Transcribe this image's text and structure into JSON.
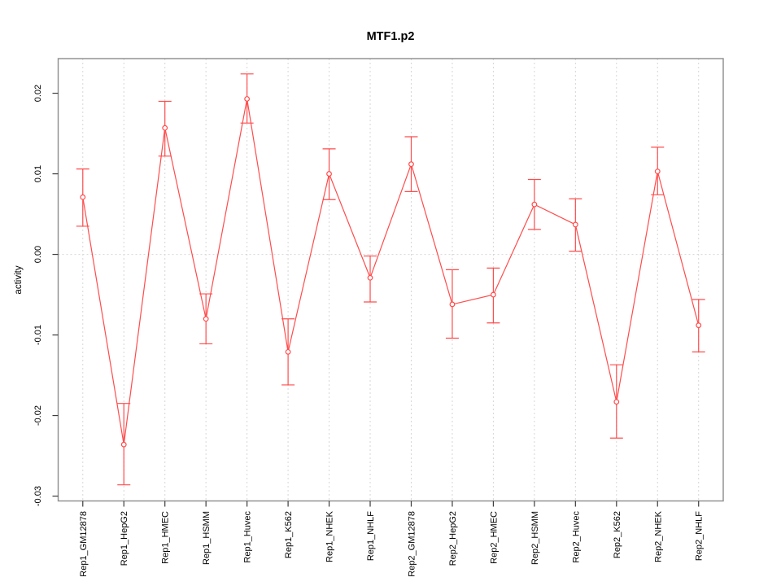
{
  "chart_data": {
    "type": "line",
    "title": "MTF1.p2",
    "xlabel": "",
    "ylabel": "activity",
    "categories": [
      "Rep1_GM12878",
      "Rep1_HepG2",
      "Rep1_HMEC",
      "Rep1_HSMM",
      "Rep1_Huvec",
      "Rep1_K562",
      "Rep1_NHEK",
      "Rep1_NHLF",
      "Rep2_GM12878",
      "Rep2_HepG2",
      "Rep2_HMEC",
      "Rep2_HSMM",
      "Rep2_Huvec",
      "Rep2_K562",
      "Rep2_NHEK",
      "Rep2_NHLF"
    ],
    "series": [
      {
        "name": "activity",
        "values": [
          0.0071,
          -0.0236,
          0.0157,
          -0.008,
          0.0193,
          -0.0121,
          0.01,
          -0.0029,
          0.0112,
          -0.0062,
          -0.005,
          0.0062,
          0.0037,
          -0.0183,
          0.0103,
          -0.0088
        ],
        "err_high": [
          0.0106,
          -0.0185,
          0.019,
          -0.0049,
          0.0224,
          -0.008,
          0.0131,
          -0.0002,
          0.0146,
          -0.0019,
          -0.0017,
          0.0093,
          0.0069,
          -0.0137,
          0.0133,
          -0.0056
        ],
        "err_low": [
          0.0035,
          -0.0286,
          0.0122,
          -0.0111,
          0.0163,
          -0.0162,
          0.0068,
          -0.0059,
          0.0078,
          -0.0104,
          -0.0085,
          0.0031,
          0.0004,
          -0.0228,
          0.0074,
          -0.0121
        ]
      }
    ],
    "yticks": [
      -0.03,
      -0.02,
      -0.01,
      0.0,
      0.01,
      0.02
    ],
    "ytick_labels": [
      "-0.03",
      "-0.02",
      "-0.01",
      "0.00",
      "0.01",
      "0.02"
    ],
    "ylim": [
      -0.0306,
      0.0243
    ],
    "grid": {
      "vertical_gridlines": true,
      "zero_line": true,
      "horizontal_gridlines": false
    },
    "legend": "none",
    "marker": "open-circle",
    "colors": {
      "series": "#ff4c4c",
      "grid": "#d6d6d6",
      "box": "#8c8c8c",
      "tick": "#3c3c3c",
      "text": "#000000",
      "background": "#ffffff"
    }
  }
}
